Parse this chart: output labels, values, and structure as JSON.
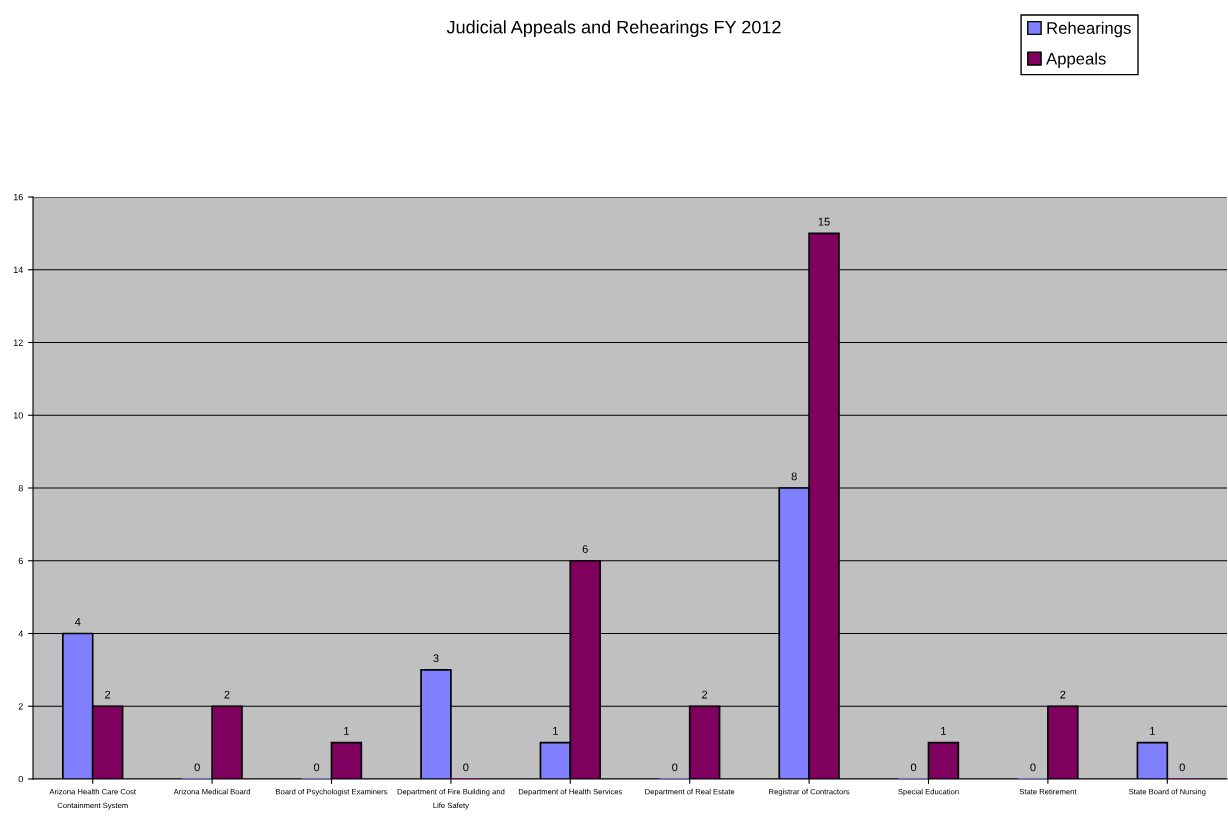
{
  "chart_data": {
    "type": "bar",
    "title": "Judicial Appeals and Rehearings FY 2012",
    "categories": [
      "Arizona Health Care Cost\nContainment System",
      "Arizona Medical Board",
      "Board of Psychologist Examiners",
      "Department of Fire Building and\nLife Safety",
      "Department of Health Services",
      "Department of Real Estate",
      "Registrar of Contractors",
      "Special Education",
      "State Retirement",
      "State Board of Nursing"
    ],
    "series": [
      {
        "name": "Rehearings",
        "color": "#8080ff",
        "values": [
          4,
          0,
          0,
          3,
          1,
          0,
          8,
          0,
          0,
          1
        ]
      },
      {
        "name": "Appeals",
        "color": "#800060",
        "values": [
          2,
          2,
          1,
          0,
          6,
          2,
          15,
          1,
          2,
          0
        ]
      }
    ],
    "ylim": [
      0,
      16
    ],
    "yticks": [
      0,
      2,
      4,
      6,
      8,
      10,
      12,
      14,
      16
    ],
    "grid": "y",
    "legend": "top right",
    "data_labels": true
  }
}
